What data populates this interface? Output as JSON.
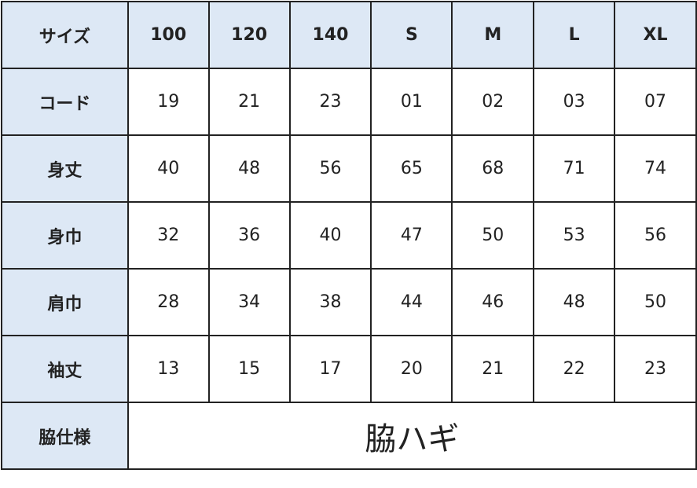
{
  "header": {
    "label": "サイズ",
    "sizes": [
      "100",
      "120",
      "140",
      "S",
      "M",
      "L",
      "XL"
    ]
  },
  "rows": [
    {
      "label": "コード",
      "values": [
        "19",
        "21",
        "23",
        "01",
        "02",
        "03",
        "07"
      ]
    },
    {
      "label": "身丈",
      "values": [
        "40",
        "48",
        "56",
        "65",
        "68",
        "71",
        "74"
      ]
    },
    {
      "label": "身巾",
      "values": [
        "32",
        "36",
        "40",
        "47",
        "50",
        "53",
        "56"
      ]
    },
    {
      "label": "肩巾",
      "values": [
        "28",
        "34",
        "38",
        "44",
        "46",
        "48",
        "50"
      ]
    },
    {
      "label": "袖丈",
      "values": [
        "13",
        "15",
        "17",
        "20",
        "21",
        "22",
        "23"
      ]
    }
  ],
  "side": {
    "label": "脇仕様",
    "value": "脇ハギ"
  },
  "colors": {
    "header_bg": "#dde8f5",
    "border": "#222222"
  }
}
